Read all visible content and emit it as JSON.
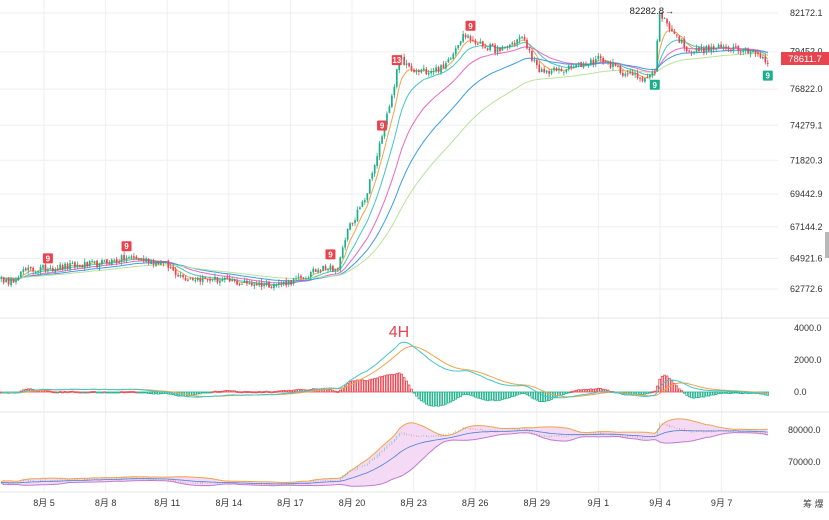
{
  "chart_data": [
    {
      "type": "candlestick",
      "panel": "price",
      "timeframe": "4H",
      "x_ticks": [
        "8月 5",
        "8月 8",
        "8月 11",
        "8月 14",
        "8月 17",
        "8月 20",
        "8月 23",
        "8月 26",
        "8月 29",
        "9月 1",
        "9月 4",
        "9月 7"
      ],
      "y_ticks": [
        "82172.1",
        "79452.0",
        "76822.0",
        "74279.1",
        "71820.3",
        "69442.9",
        "67144.2",
        "64921.6",
        "62772.6"
      ],
      "last_price": "78611.7",
      "high_annotation": "82282.8",
      "marker_labels": [
        "9",
        "9",
        "9",
        "13",
        "9",
        "9",
        "9",
        "9"
      ],
      "anchors": [
        {
          "t": 0,
          "p": 63600
        },
        {
          "t": 3,
          "p": 63100
        },
        {
          "t": 8,
          "p": 64000
        },
        {
          "t": 20,
          "p": 64250
        },
        {
          "t": 40,
          "p": 64550
        },
        {
          "t": 52,
          "p": 65000
        },
        {
          "t": 66,
          "p": 64600
        },
        {
          "t": 74,
          "p": 63600
        },
        {
          "t": 86,
          "p": 63450
        },
        {
          "t": 100,
          "p": 63150
        },
        {
          "t": 112,
          "p": 63100
        },
        {
          "t": 123,
          "p": 63500
        },
        {
          "t": 131,
          "p": 64400
        },
        {
          "t": 137,
          "p": 64150
        },
        {
          "t": 141,
          "p": 67000
        },
        {
          "t": 148,
          "p": 69000
        },
        {
          "t": 155,
          "p": 73500
        },
        {
          "t": 160,
          "p": 77000
        },
        {
          "t": 162,
          "p": 79000
        },
        {
          "t": 168,
          "p": 78000
        },
        {
          "t": 180,
          "p": 78300
        },
        {
          "t": 188,
          "p": 80700
        },
        {
          "t": 194,
          "p": 80000
        },
        {
          "t": 203,
          "p": 79500
        },
        {
          "t": 212,
          "p": 80500
        },
        {
          "t": 219,
          "p": 78000
        },
        {
          "t": 230,
          "p": 78200
        },
        {
          "t": 244,
          "p": 79000
        },
        {
          "t": 254,
          "p": 77900
        },
        {
          "t": 262,
          "p": 77600
        },
        {
          "t": 266,
          "p": 78000
        },
        {
          "t": 268,
          "p": 82200
        },
        {
          "t": 274,
          "p": 80700
        },
        {
          "t": 280,
          "p": 79500
        },
        {
          "t": 298,
          "p": 79800
        },
        {
          "t": 306,
          "p": 79500
        },
        {
          "t": 312,
          "p": 78611.7
        }
      ],
      "ma_lags": [
        2.5,
        6,
        12,
        20,
        32
      ],
      "ma_colors": [
        "#f0a34a",
        "#44c6c6",
        "#e868c4",
        "#3a9de8",
        "#b8e29a"
      ]
    },
    {
      "type": "macd",
      "panel": "indicator",
      "y_ticks": [
        "4000.0",
        "2000.0",
        "0.0"
      ],
      "line_colors": [
        "#f0a34a",
        "#44c6c6"
      ]
    },
    {
      "type": "bollinger",
      "panel": "indicator",
      "y_ticks": [
        "80000.0",
        "70000.0"
      ],
      "fill_color": "#f3d6f3"
    }
  ],
  "colors": {
    "up": "#1bb08a",
    "down": "#e8444f",
    "grid": "#efefef",
    "text": "#333333"
  },
  "watermark": "4H",
  "corner_text": "筹  爆"
}
